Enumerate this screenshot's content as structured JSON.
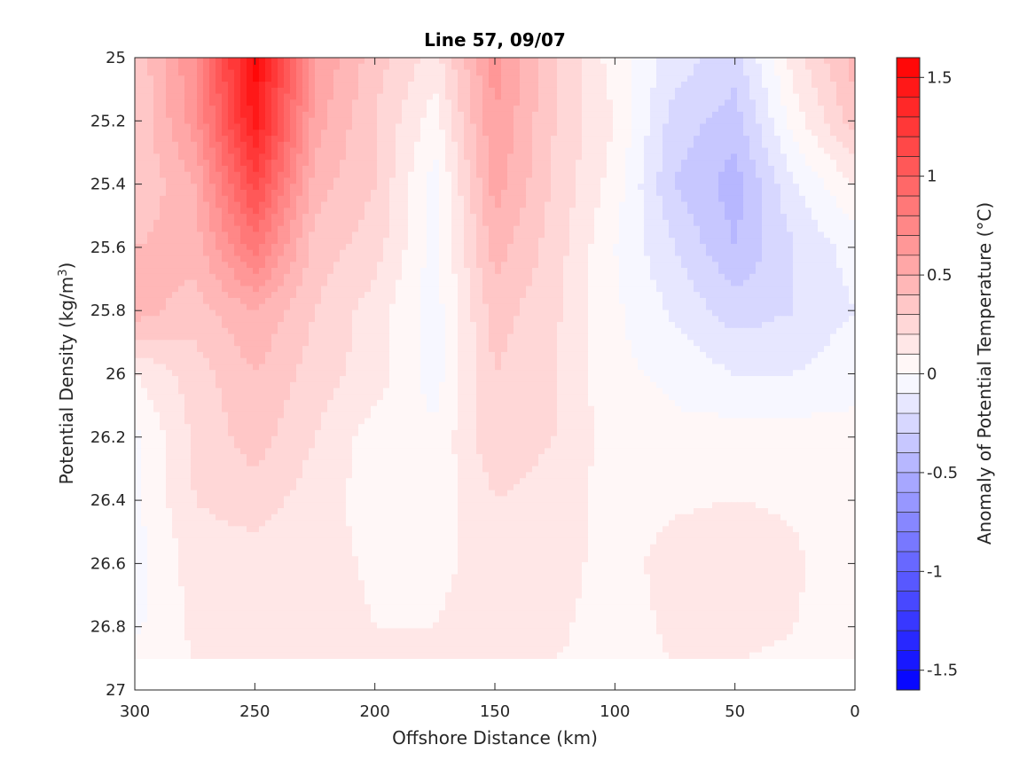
{
  "chart_data": {
    "type": "heatmap",
    "title": "Line 57, 09/07",
    "xlabel": "Offshore Distance (km)",
    "ylabel_main": "Potential Density (kg/m",
    "ylabel_sup": "3",
    "ylabel_close": ")",
    "xlim": [
      300,
      0
    ],
    "ylim": [
      25,
      27
    ],
    "x_ticks": [
      300,
      250,
      200,
      150,
      100,
      50,
      0
    ],
    "y_ticks": [
      25,
      25.2,
      25.4,
      25.6,
      25.8,
      26,
      26.2,
      26.4,
      26.6,
      26.8,
      27
    ],
    "x_tick_labels": [
      "300",
      "250",
      "200",
      "150",
      "100",
      "50",
      "0"
    ],
    "y_tick_labels": [
      "25",
      "25.2",
      "25.4",
      "25.6",
      "25.8",
      "26",
      "26.2",
      "26.4",
      "26.6",
      "26.8",
      "27"
    ],
    "colorbar": {
      "label": "Anomaly of Potential Temperature (°C)",
      "range": [
        -1.6,
        1.6
      ],
      "levels": 32,
      "ticks": [
        1.5,
        1,
        0.5,
        0,
        -0.5,
        -1,
        -1.5
      ],
      "tick_labels": [
        "1.5",
        "1",
        "0.5",
        "0",
        "-0.5",
        "-1",
        "-1.5"
      ],
      "color_max": "#ff0000",
      "color_mid": "#ffffff",
      "color_min": "#0000ff"
    },
    "grid_x": [
      300,
      275,
      250,
      225,
      200,
      175,
      150,
      125,
      100,
      75,
      50,
      25,
      0
    ],
    "grid_y": [
      25.0,
      25.2,
      25.4,
      25.6,
      25.8,
      26.0,
      26.2,
      26.4,
      26.6,
      26.8,
      26.9
    ],
    "values": [
      [
        0.3,
        0.7,
        1.55,
        0.6,
        0.35,
        0.15,
        0.65,
        0.3,
        0.05,
        -0.15,
        -0.25,
        0.15,
        0.45
      ],
      [
        0.3,
        0.65,
        1.45,
        0.55,
        0.3,
        0.05,
        0.6,
        0.3,
        0.1,
        -0.25,
        -0.35,
        0.05,
        0.35
      ],
      [
        0.3,
        0.5,
        1.15,
        0.45,
        0.3,
        -0.05,
        0.55,
        0.28,
        0.05,
        -0.3,
        -0.45,
        -0.1,
        0.1
      ],
      [
        0.4,
        0.45,
        0.85,
        0.35,
        0.25,
        -0.05,
        0.45,
        0.25,
        0.0,
        -0.2,
        -0.4,
        -0.2,
        -0.05
      ],
      [
        0.45,
        0.35,
        0.5,
        0.3,
        0.15,
        -0.05,
        0.35,
        0.22,
        0.02,
        -0.12,
        -0.25,
        -0.2,
        -0.1
      ],
      [
        0.1,
        0.25,
        0.4,
        0.25,
        0.15,
        -0.05,
        0.3,
        0.2,
        0.02,
        -0.02,
        -0.1,
        -0.1,
        -0.02
      ],
      [
        -0.02,
        0.22,
        0.35,
        0.2,
        0.05,
        0.02,
        0.28,
        0.2,
        0.05,
        0.02,
        0.05,
        0.05,
        0.02
      ],
      [
        -0.02,
        0.2,
        0.25,
        0.15,
        0.05,
        0.03,
        0.2,
        0.15,
        0.05,
        0.08,
        0.1,
        0.08,
        0.02
      ],
      [
        -0.05,
        0.15,
        0.15,
        0.15,
        0.08,
        0.05,
        0.18,
        0.15,
        0.05,
        0.15,
        0.2,
        0.12,
        0.02
      ],
      [
        -0.02,
        0.12,
        0.15,
        0.15,
        0.1,
        0.1,
        0.2,
        0.12,
        0.05,
        0.12,
        0.15,
        0.1,
        0.02
      ],
      [
        0.05,
        0.1,
        0.1,
        0.15,
        0.12,
        0.1,
        0.12,
        0.1,
        0.08,
        0.1,
        0.1,
        0.08,
        0.03
      ]
    ]
  }
}
